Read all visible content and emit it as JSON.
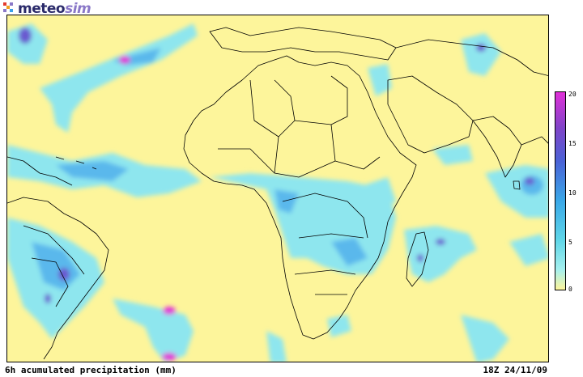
{
  "logo": {
    "brand_main": "meteo",
    "brand_sub": "sim"
  },
  "legend": {
    "ticks": [
      "20",
      "15",
      "10",
      "5",
      "0"
    ]
  },
  "footer": {
    "title": "6h acumulated precipitation (mm)",
    "timestamp": "18Z 24/11/09"
  },
  "colors": {
    "background": "#fdf59b",
    "light_precip": "#8ee6ee",
    "medium_precip": "#5ab8ec",
    "heavy_precip": "#6a5ad0",
    "max_precip": "#e030d8",
    "coastline": "#000000"
  }
}
